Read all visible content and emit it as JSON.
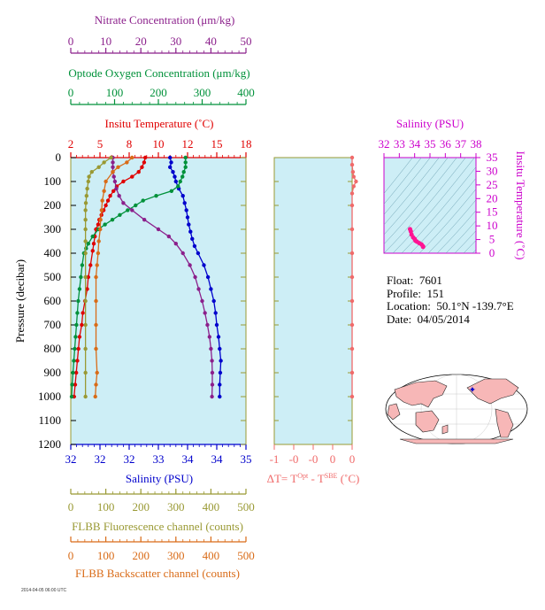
{
  "colors": {
    "panel_bg": "#cdeef6",
    "nitrate": "#8b1f8b",
    "oxygen": "#00913a",
    "temperature": "#e00000",
    "salinity": "#0000cc",
    "fluorescence": "#999933",
    "backscatter": "#d96b17",
    "delta_t": "#f06a6a",
    "ts_axis": "#cc00cc"
  },
  "axes": {
    "nitrate": {
      "title": "Nitrate Concentration (μm/kg)",
      "ticks": [
        "0",
        "10",
        "20",
        "30",
        "40",
        "50"
      ],
      "range": [
        0,
        50
      ]
    },
    "oxygen": {
      "title": "Optode Oxygen Concentration (μm/kg)",
      "ticks": [
        "0",
        "100",
        "200",
        "300",
        "400"
      ],
      "range": [
        0,
        400
      ]
    },
    "temperature": {
      "title": "Insitu Temperature (˚C)",
      "ticks": [
        "2",
        "5",
        "8",
        "10",
        "12",
        "15",
        "18"
      ],
      "range": [
        2,
        18
      ]
    },
    "salinity": {
      "title": "Salinity (PSU)",
      "ticks": [
        "32",
        "32",
        "32",
        "33",
        "34",
        "34",
        "35"
      ],
      "range": [
        32,
        35
      ]
    },
    "fluorescence": {
      "title": "FLBB Fluorescence channel (counts)",
      "ticks": [
        "0",
        "100",
        "200",
        "300",
        "400",
        "500"
      ],
      "range": [
        0,
        500
      ]
    },
    "backscatter": {
      "title": "FLBB Backscatter channel (counts)",
      "ticks": [
        "0",
        "100",
        "200",
        "300",
        "400",
        "500"
      ],
      "range": [
        0,
        500
      ]
    },
    "pressure": {
      "title": "Pressure (decibar)",
      "ticks": [
        "0",
        "100",
        "200",
        "300",
        "400",
        "500",
        "600",
        "700",
        "800",
        "900",
        "1000",
        "1100",
        "1200"
      ],
      "range": [
        0,
        1200
      ]
    },
    "delta_t": {
      "title_main": "ΔT= T",
      "sup1": "Opt",
      "title_mid": " - T",
      "sup2": "SBE",
      "title_unit": " (˚C)",
      "ticks": [
        "-1",
        "-0",
        "-0",
        "0",
        "0"
      ],
      "range": [
        -1,
        0
      ]
    },
    "ts_salinity": {
      "title": "Salinity (PSU)",
      "ticks": [
        "32",
        "33",
        "34",
        "35",
        "36",
        "37",
        "38"
      ],
      "range": [
        32,
        38
      ]
    },
    "ts_temperature": {
      "title": "Insitu Temperature (˚C)",
      "ticks": [
        "0",
        "5",
        "10",
        "15",
        "20",
        "25",
        "30",
        "35"
      ],
      "range": [
        0,
        35
      ]
    }
  },
  "info": {
    "float_label": "Float:",
    "float": "7601",
    "profile_label": "Profile:",
    "profile": "151",
    "location_label": "Location:",
    "location": "50.1°N  -139.7°E",
    "date_label": "Date:",
    "date": "04/05/2014"
  },
  "footer_tiny": "2014-04-05 06:00 UTC",
  "chart_data": {
    "type": "line",
    "y_axis": "pressure",
    "ylim": [
      0,
      1200
    ],
    "series": [
      {
        "key": "temperature",
        "axis": "temperature",
        "points": [
          [
            8.8,
            0
          ],
          [
            8.7,
            20
          ],
          [
            8.5,
            40
          ],
          [
            8.2,
            60
          ],
          [
            7.6,
            80
          ],
          [
            6.8,
            100
          ],
          [
            6.2,
            120
          ],
          [
            5.9,
            140
          ],
          [
            5.6,
            160
          ],
          [
            5.4,
            180
          ],
          [
            5.2,
            200
          ],
          [
            5.0,
            220
          ],
          [
            4.8,
            240
          ],
          [
            4.6,
            260
          ],
          [
            4.5,
            280
          ],
          [
            4.3,
            300
          ],
          [
            4.2,
            330
          ],
          [
            4.1,
            360
          ],
          [
            4.0,
            390
          ],
          [
            3.8,
            450
          ],
          [
            3.6,
            500
          ],
          [
            3.5,
            550
          ],
          [
            3.3,
            600
          ],
          [
            3.1,
            650
          ],
          [
            3.0,
            700
          ],
          [
            2.8,
            750
          ],
          [
            2.7,
            800
          ],
          [
            2.6,
            850
          ],
          [
            2.5,
            900
          ],
          [
            2.4,
            950
          ],
          [
            2.3,
            1000
          ]
        ]
      },
      {
        "key": "salinity",
        "axis": "salinity",
        "points": [
          [
            33.7,
            0
          ],
          [
            33.72,
            20
          ],
          [
            33.7,
            40
          ],
          [
            33.75,
            60
          ],
          [
            33.78,
            80
          ],
          [
            33.8,
            100
          ],
          [
            33.85,
            130
          ],
          [
            33.92,
            160
          ],
          [
            33.95,
            190
          ],
          [
            33.98,
            220
          ],
          [
            34.0,
            250
          ],
          [
            34.02,
            280
          ],
          [
            34.05,
            310
          ],
          [
            34.08,
            340
          ],
          [
            34.12,
            370
          ],
          [
            34.18,
            400
          ],
          [
            34.28,
            450
          ],
          [
            34.35,
            500
          ],
          [
            34.4,
            550
          ],
          [
            34.45,
            600
          ],
          [
            34.48,
            650
          ],
          [
            34.5,
            700
          ],
          [
            34.53,
            750
          ],
          [
            34.55,
            800
          ],
          [
            34.57,
            850
          ],
          [
            34.56,
            900
          ],
          [
            34.55,
            950
          ],
          [
            34.55,
            1000
          ]
        ]
      },
      {
        "key": "oxygen",
        "axis": "oxygen",
        "points": [
          [
            262,
            0
          ],
          [
            262,
            20
          ],
          [
            262,
            40
          ],
          [
            258,
            60
          ],
          [
            255,
            80
          ],
          [
            250,
            100
          ],
          [
            245,
            120
          ],
          [
            230,
            140
          ],
          [
            195,
            160
          ],
          [
            165,
            180
          ],
          [
            148,
            200
          ],
          [
            130,
            220
          ],
          [
            112,
            240
          ],
          [
            95,
            260
          ],
          [
            78,
            280
          ],
          [
            63,
            300
          ],
          [
            50,
            330
          ],
          [
            40,
            360
          ],
          [
            35,
            380
          ],
          [
            30,
            400
          ],
          [
            26,
            450
          ],
          [
            23,
            500
          ],
          [
            20,
            550
          ],
          [
            17,
            600
          ],
          [
            15,
            650
          ],
          [
            13,
            700
          ],
          [
            11,
            750
          ],
          [
            9,
            800
          ],
          [
            7,
            850
          ],
          [
            5,
            900
          ],
          [
            3,
            950
          ],
          [
            2,
            1000
          ]
        ]
      },
      {
        "key": "nitrate",
        "axis": "nitrate",
        "points": [
          [
            12,
            0
          ],
          [
            12,
            20
          ],
          [
            12,
            40
          ],
          [
            12,
            60
          ],
          [
            12.3,
            80
          ],
          [
            12.6,
            100
          ],
          [
            13,
            130
          ],
          [
            13.8,
            160
          ],
          [
            15,
            190
          ],
          [
            17.5,
            220
          ],
          [
            21,
            260
          ],
          [
            25,
            300
          ],
          [
            28,
            330
          ],
          [
            30,
            360
          ],
          [
            32,
            400
          ],
          [
            34,
            450
          ],
          [
            35.5,
            500
          ],
          [
            36.5,
            550
          ],
          [
            37.5,
            600
          ],
          [
            38.3,
            650
          ],
          [
            39,
            700
          ],
          [
            39.6,
            750
          ],
          [
            40,
            800
          ],
          [
            40.3,
            850
          ],
          [
            40.4,
            900
          ],
          [
            40.4,
            950
          ],
          [
            40.3,
            1000
          ]
        ]
      },
      {
        "key": "fluorescence",
        "axis": "fluorescence",
        "points": [
          [
            115,
            0
          ],
          [
            95,
            20
          ],
          [
            80,
            40
          ],
          [
            60,
            60
          ],
          [
            52,
            80
          ],
          [
            50,
            100
          ],
          [
            47,
            130
          ],
          [
            45,
            160
          ],
          [
            43,
            190
          ],
          [
            42,
            220
          ],
          [
            42,
            260
          ],
          [
            42,
            300
          ],
          [
            42,
            350
          ],
          [
            42,
            400
          ],
          [
            42,
            500
          ],
          [
            42,
            600
          ],
          [
            42,
            700
          ],
          [
            42,
            800
          ],
          [
            42,
            900
          ],
          [
            42,
            1000
          ]
        ]
      },
      {
        "key": "backscatter",
        "axis": "backscatter",
        "points": [
          [
            175,
            0
          ],
          [
            160,
            20
          ],
          [
            135,
            40
          ],
          [
            120,
            60
          ],
          [
            100,
            100
          ],
          [
            95,
            140
          ],
          [
            90,
            180
          ],
          [
            88,
            220
          ],
          [
            85,
            260
          ],
          [
            84,
            300
          ],
          [
            80,
            350
          ],
          [
            78,
            400
          ],
          [
            75,
            450
          ],
          [
            72,
            500
          ],
          [
            72,
            600
          ],
          [
            72,
            700
          ],
          [
            72,
            800
          ],
          [
            75,
            900
          ],
          [
            72,
            950
          ],
          [
            70,
            1000
          ]
        ]
      },
      {
        "key": "delta_t",
        "axis": "delta_t",
        "points": [
          [
            0.0,
            0
          ],
          [
            0.0,
            30
          ],
          [
            0.01,
            60
          ],
          [
            0.02,
            80
          ],
          [
            0.05,
            100
          ],
          [
            0.02,
            120
          ],
          [
            0.0,
            150
          ],
          [
            0.0,
            200
          ],
          [
            0.0,
            300
          ],
          [
            0.0,
            400
          ],
          [
            0.0,
            500
          ],
          [
            0.0,
            600
          ],
          [
            0.0,
            700
          ],
          [
            0.0,
            800
          ],
          [
            0.0,
            900
          ],
          [
            0.0,
            1000
          ]
        ]
      }
    ],
    "ts_points": [
      [
        33.7,
        8.8
      ],
      [
        33.75,
        8.0
      ],
      [
        33.8,
        6.8
      ],
      [
        33.9,
        5.8
      ],
      [
        34.0,
        5.2
      ],
      [
        34.05,
        4.6
      ],
      [
        34.15,
        4.2
      ],
      [
        34.3,
        3.7
      ],
      [
        34.45,
        3.2
      ],
      [
        34.55,
        2.5
      ],
      [
        34.55,
        2.3
      ]
    ],
    "map_marker": {
      "lat": 50.1,
      "lon": -139.7
    }
  }
}
